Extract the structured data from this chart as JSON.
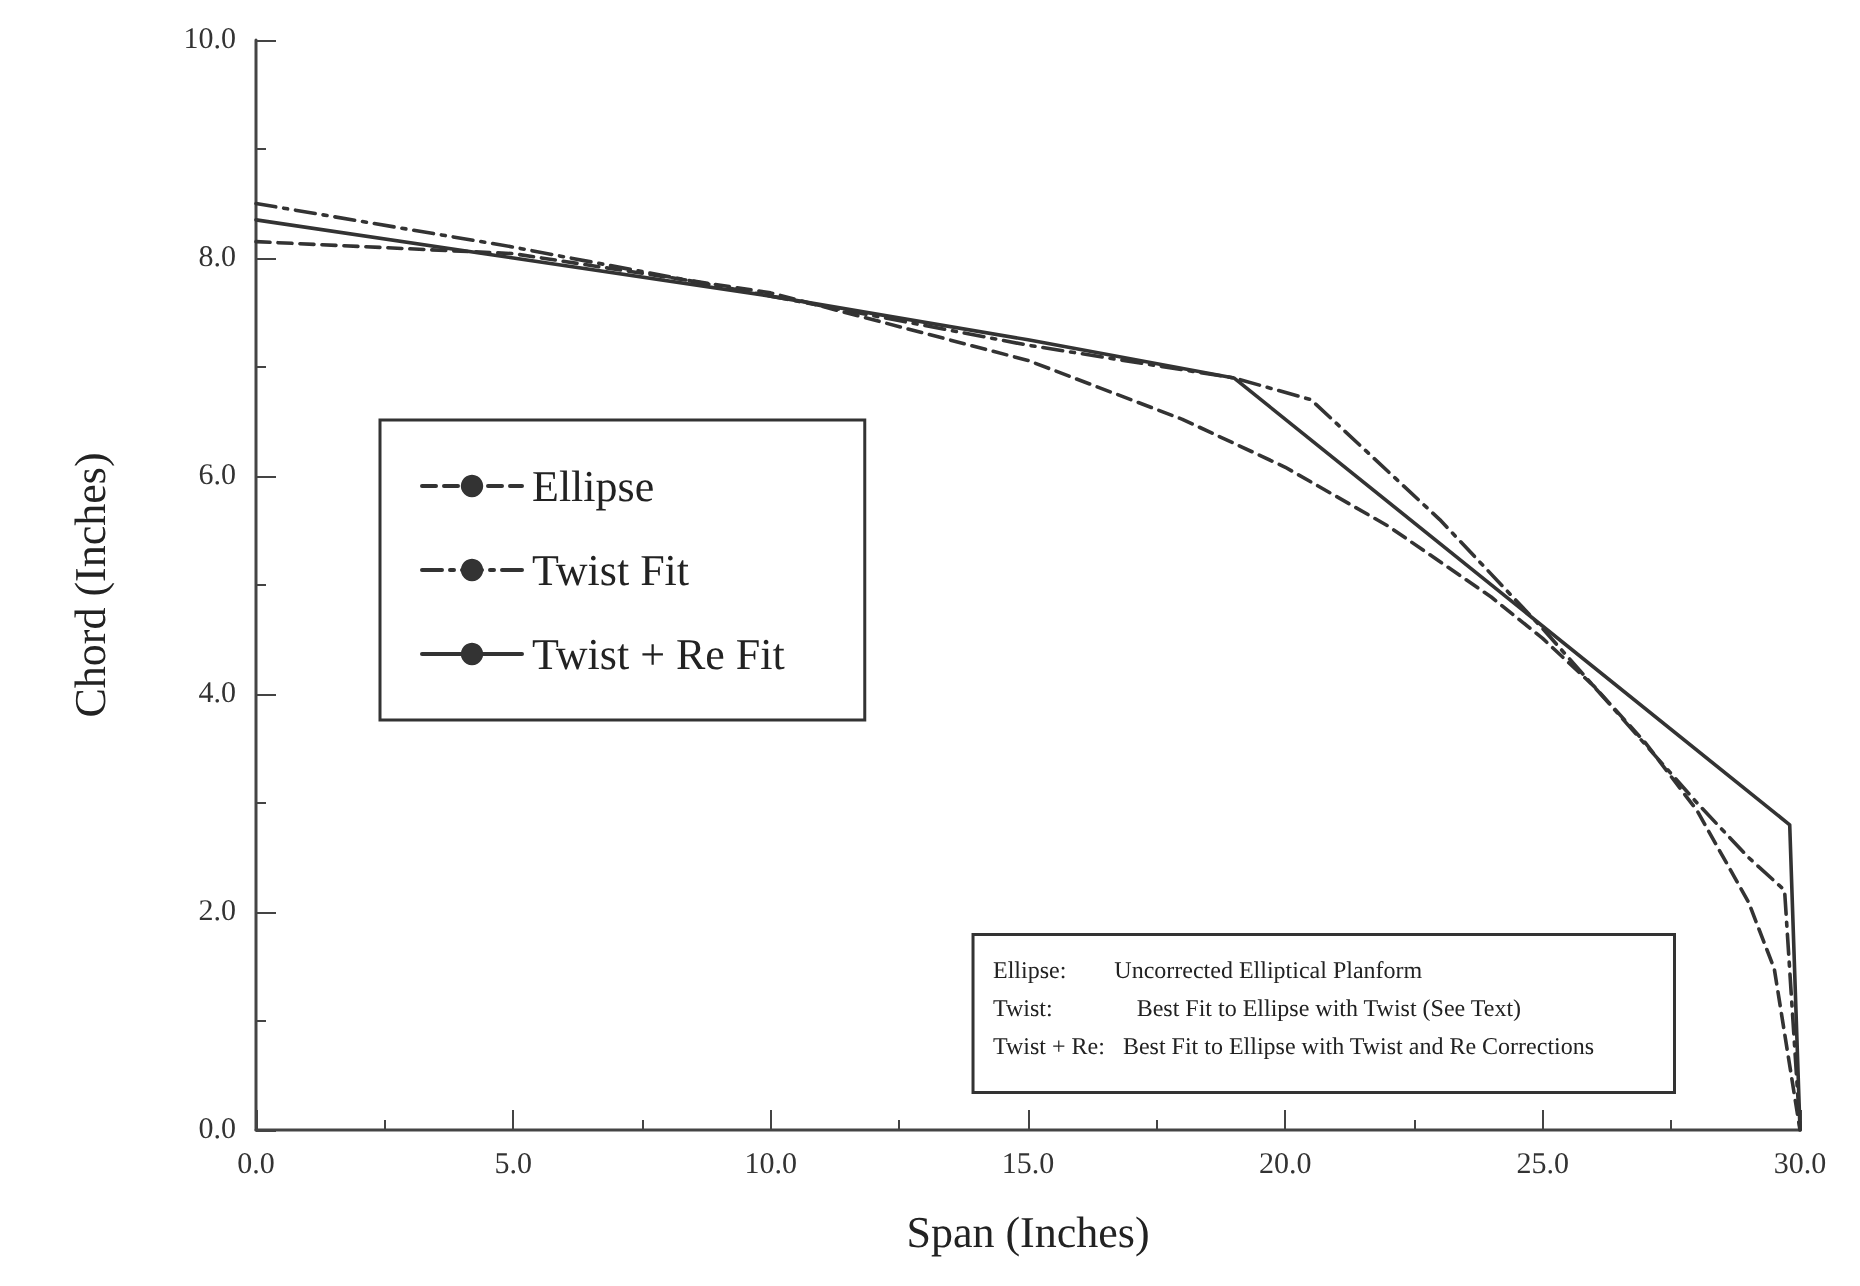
{
  "chart_data": {
    "type": "line",
    "xlabel": "Span (Inches)",
    "ylabel": "Chord (Inches)",
    "xlim": [
      0,
      30
    ],
    "ylim": [
      0,
      10
    ],
    "xticks": [
      {
        "value": 0,
        "label": "0.0"
      },
      {
        "value": 5,
        "label": "5.0"
      },
      {
        "value": 10,
        "label": "10.0"
      },
      {
        "value": 15,
        "label": "15.0"
      },
      {
        "value": 20,
        "label": "20.0"
      },
      {
        "value": 25,
        "label": "25.0"
      },
      {
        "value": 30,
        "label": "30.0"
      }
    ],
    "yticks": [
      {
        "value": 0,
        "label": "0.0"
      },
      {
        "value": 2,
        "label": "2.0"
      },
      {
        "value": 4,
        "label": "4.0"
      },
      {
        "value": 6,
        "label": "6.0"
      },
      {
        "value": 8,
        "label": "8.0"
      },
      {
        "value": 10,
        "label": "10.0"
      }
    ],
    "grid": false,
    "legend": "left",
    "marker": "none",
    "series": [
      {
        "name": "Ellipse",
        "color": "#333333",
        "line_style": "dashed",
        "x": [
          0,
          5,
          10,
          15,
          18,
          20,
          22,
          24,
          25,
          26,
          27,
          28,
          29,
          29.5,
          30
        ],
        "values": [
          8.15,
          8.04,
          7.68,
          7.06,
          6.52,
          6.08,
          5.54,
          4.89,
          4.51,
          4.07,
          3.55,
          2.93,
          2.09,
          1.48,
          0
        ]
      },
      {
        "name": "Twist Fit",
        "color": "#333333",
        "line_style": "dashdot",
        "x": [
          0,
          5,
          10,
          15,
          19,
          20.5,
          23,
          25,
          26.5,
          28,
          29,
          29.7,
          30
        ],
        "values": [
          8.5,
          8.1,
          7.65,
          7.2,
          6.9,
          6.7,
          5.6,
          4.6,
          3.8,
          3.0,
          2.5,
          2.2,
          0
        ]
      },
      {
        "name": "Twist + Re Fit",
        "color": "#333333",
        "line_style": "solid",
        "x": [
          0,
          5,
          10,
          15,
          19,
          29.8,
          30
        ],
        "values": [
          8.35,
          8.0,
          7.65,
          7.25,
          6.9,
          2.8,
          0
        ]
      }
    ],
    "annotations": [
      "Ellipse:        Uncorrected Elliptical Planform",
      "Twist:              Best Fit to Ellipse with Twist (See Text)",
      "Twist + Re:   Best Fit to Ellipse with Twist and Re Corrections"
    ]
  }
}
